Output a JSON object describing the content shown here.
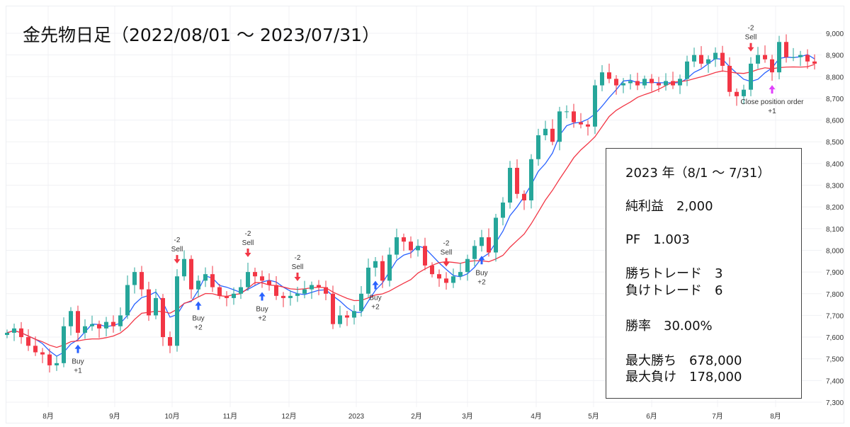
{
  "title": "金先物日足（2022/08/01 ～ 2023/07/31）",
  "stats": {
    "period": "2023 年（8/1 ～ 7/31）",
    "net_profit": "純利益　2,000",
    "pf": "PF　1.003",
    "wins": "勝ちトレード　3",
    "losses": "負けトレード　6",
    "win_rate": "勝率　30.00%",
    "max_win": "最大勝ち　678,000",
    "max_loss": "最大負け　178,000"
  },
  "chart_data": {
    "type": "candlestick",
    "title": "金先物日足（2022/08/01 ～ 2023/07/31）",
    "ylim": [
      7300,
      9000
    ],
    "y_ticks": [
      "7,300",
      "7,400",
      "7,500",
      "7,600",
      "7,700",
      "7,800",
      "7,900",
      "8,000",
      "8,100",
      "8,200",
      "8,300",
      "8,400",
      "8,500",
      "8,600",
      "8,700",
      "8,800",
      "8,900",
      "9,000"
    ],
    "x_ticks": [
      "8月",
      "9月",
      "10月",
      "11月",
      "12月",
      "2023",
      "2月",
      "3月",
      "4月",
      "5月",
      "6月",
      "7月",
      "8月"
    ],
    "grid": true,
    "colors": {
      "up": "#26a69a",
      "down": "#f23645",
      "ma_short": "#2962ff",
      "ma_long": "#f23645",
      "buy": "#2962ff",
      "sell": "#f23645",
      "close": "#e040fb"
    },
    "close": [
      7620,
      7640,
      7600,
      7560,
      7530,
      7520,
      7470,
      7480,
      7650,
      7720,
      7620,
      7650,
      7660,
      7640,
      7670,
      7650,
      7700,
      7840,
      7900,
      7820,
      7700,
      7780,
      7600,
      7560,
      7880,
      7960,
      7820,
      7860,
      7890,
      7830,
      7790,
      7780,
      7800,
      7830,
      7900,
      7880,
      7860,
      7840,
      7790,
      7780,
      7790,
      7800,
      7820,
      7840,
      7830,
      7800,
      7660,
      7700,
      7690,
      7720,
      7800,
      7920,
      7950,
      7860,
      7980,
      8060,
      8040,
      8000,
      8020,
      7930,
      7890,
      7870,
      7850,
      7880,
      7900,
      7960,
      8020,
      8060,
      7990,
      8150,
      8220,
      8380,
      8260,
      8230,
      8420,
      8530,
      8560,
      8500,
      8640,
      8640,
      8590,
      8580,
      8570,
      8760,
      8820,
      8790,
      8760,
      8770,
      8780,
      8760,
      8790,
      8770,
      8760,
      8780,
      8760,
      8790,
      8870,
      8900,
      8860,
      8880,
      8910,
      8850,
      8730,
      8710,
      8740,
      8860,
      8900,
      8880,
      8820,
      8960,
      8890,
      8890,
      8900,
      8870,
      8860
    ],
    "signals": [
      {
        "type": "buy",
        "candle": 10,
        "label": "Buy",
        "qty": "+1"
      },
      {
        "type": "sell",
        "candle": 24,
        "label": "Sell",
        "qty": "-2"
      },
      {
        "type": "buy",
        "candle": 27,
        "label": "Buy",
        "qty": "+2"
      },
      {
        "type": "sell",
        "candle": 34,
        "label": "Sell",
        "qty": "-2"
      },
      {
        "type": "buy",
        "candle": 36,
        "label": "Buy",
        "qty": "+2"
      },
      {
        "type": "sell",
        "candle": 41,
        "label": "Sell",
        "qty": "-2"
      },
      {
        "type": "buy",
        "candle": 52,
        "label": "Buy",
        "qty": "+2"
      },
      {
        "type": "sell",
        "candle": 62,
        "label": "Sell",
        "qty": "-2"
      },
      {
        "type": "buy",
        "candle": 67,
        "label": "Buy",
        "qty": "+2"
      },
      {
        "type": "sell",
        "candle": 105,
        "label": "Sell",
        "qty": "-2"
      },
      {
        "type": "close",
        "candle": 108,
        "label": "Close position order",
        "qty": "+1"
      }
    ]
  }
}
